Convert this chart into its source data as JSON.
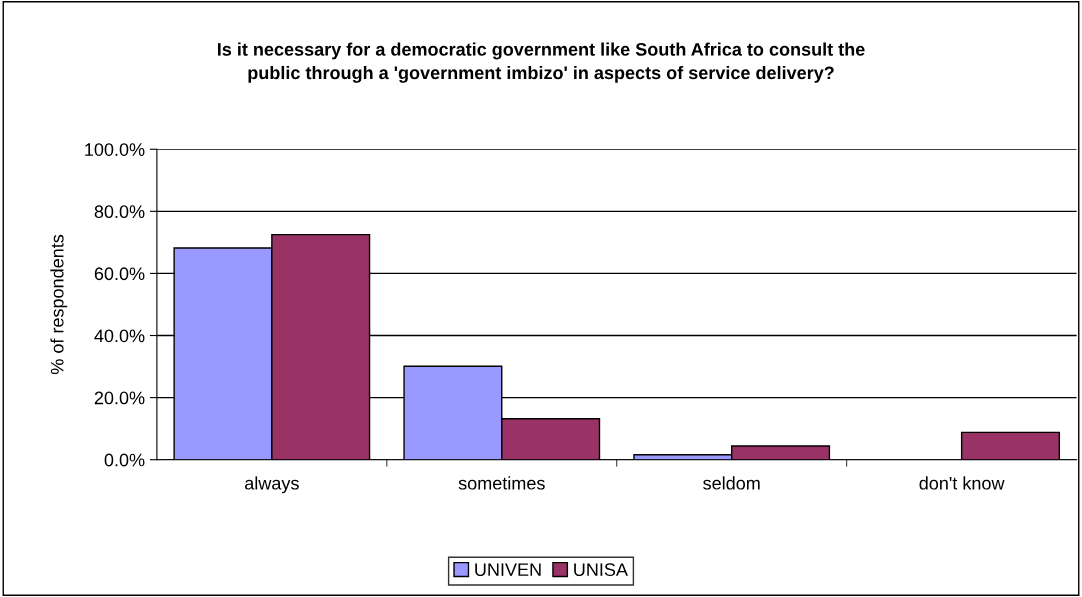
{
  "chart_data": {
    "type": "bar",
    "title": "Is it necessary for a democratic government like South Africa to consult the\npublic through a 'government imbizo' in aspects of service delivery?",
    "ylabel": "% of respondents",
    "categories": [
      "always",
      "sometimes",
      "seldom",
      "don't know"
    ],
    "series": [
      {
        "name": "UNIVEN",
        "color": "#9999ff",
        "values": [
          68.2,
          30.1,
          1.6,
          null
        ]
      },
      {
        "name": "UNISA",
        "color": "#993366",
        "values": [
          72.5,
          13.2,
          4.4,
          8.8
        ]
      }
    ],
    "ylim": [
      0,
      100
    ],
    "yticks": [
      {
        "value": 0,
        "label": "0.0%"
      },
      {
        "value": 20,
        "label": "20.0%"
      },
      {
        "value": 40,
        "label": "40.0%"
      },
      {
        "value": 60,
        "label": "60.0%"
      },
      {
        "value": 80,
        "label": "80.0%"
      },
      {
        "value": 100,
        "label": "100.0%"
      }
    ],
    "grid": "y",
    "legend": "bottom"
  }
}
